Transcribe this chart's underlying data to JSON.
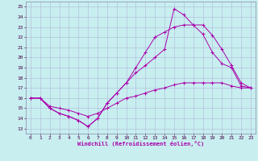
{
  "xlabel": "Windchill (Refroidissement éolien,°C)",
  "bg_color": "#c8eef0",
  "grid_color": "#b0b8d8",
  "line_color": "#aa00aa",
  "xlim": [
    -0.5,
    23.5
  ],
  "ylim": [
    12.5,
    25.5
  ],
  "xticks": [
    0,
    1,
    2,
    3,
    4,
    5,
    6,
    7,
    8,
    9,
    10,
    11,
    12,
    13,
    14,
    15,
    16,
    17,
    18,
    19,
    20,
    21,
    22,
    23
  ],
  "yticks": [
    13,
    14,
    15,
    16,
    17,
    18,
    19,
    20,
    21,
    22,
    23,
    24,
    25
  ],
  "line1_x": [
    0,
    1,
    2,
    3,
    4,
    5,
    6,
    7,
    8,
    9,
    10,
    11,
    12,
    13,
    14,
    15,
    16,
    17,
    18,
    19,
    20,
    21,
    22,
    23
  ],
  "line1_y": [
    16,
    16,
    15,
    14.5,
    14.2,
    13.8,
    13.2,
    14.0,
    15.5,
    16.5,
    17.5,
    18.5,
    19.2,
    20.0,
    20.8,
    24.8,
    24.2,
    23.2,
    22.3,
    20.5,
    19.4,
    19.0,
    17.2,
    17.0
  ],
  "line2_x": [
    0,
    1,
    2,
    3,
    4,
    5,
    6,
    7,
    8,
    9,
    10,
    11,
    12,
    13,
    14,
    15,
    16,
    17,
    18,
    19,
    20,
    21,
    22,
    23
  ],
  "line2_y": [
    16,
    16,
    15,
    14.5,
    14.2,
    13.8,
    13.2,
    14.0,
    15.5,
    16.5,
    17.5,
    19.0,
    20.5,
    22.0,
    22.5,
    23.0,
    23.2,
    23.2,
    23.2,
    22.2,
    20.8,
    19.2,
    17.5,
    17.0
  ],
  "line3_x": [
    0,
    1,
    2,
    3,
    4,
    5,
    6,
    7,
    8,
    9,
    10,
    11,
    12,
    13,
    14,
    15,
    16,
    17,
    18,
    19,
    20,
    21,
    22,
    23
  ],
  "line3_y": [
    16,
    16,
    15.2,
    15.0,
    14.8,
    14.5,
    14.2,
    14.5,
    15.0,
    15.5,
    16.0,
    16.2,
    16.5,
    16.8,
    17.0,
    17.3,
    17.5,
    17.5,
    17.5,
    17.5,
    17.5,
    17.2,
    17.0,
    17.0
  ]
}
